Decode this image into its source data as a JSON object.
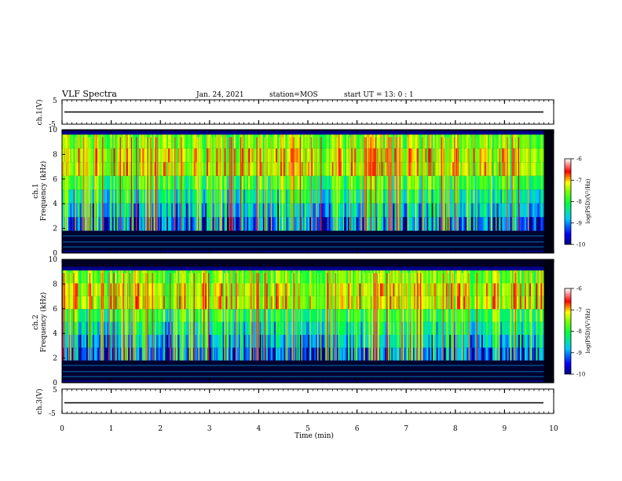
{
  "header": {
    "title": "VLF Spectra",
    "date": "Jan. 24, 2021",
    "station": "station=MOS",
    "start": "start UT =  13: 0  : 1"
  },
  "chart_data": [
    {
      "type": "line",
      "panel": "ch1-voltage",
      "ylabel": "ch.1(V)",
      "ylim": [
        -5,
        5
      ],
      "yticks": [
        "5",
        "-5"
      ],
      "series": [
        {
          "x": [
            0,
            9.8
          ],
          "y": [
            0,
            0
          ]
        }
      ]
    },
    {
      "type": "heatmap",
      "panel": "ch1-spectrogram",
      "ylabel_line1": "ch.1",
      "ylabel_line2": "Frequency (kHz)",
      "xlim": [
        0,
        10
      ],
      "ylim": [
        0,
        10
      ],
      "yticks": [
        "0",
        "2",
        "4",
        "6",
        "8",
        "10"
      ],
      "colorbar": {
        "label": "log(PSD)(V²/Hz)",
        "range": [
          -10,
          -6
        ],
        "ticks": [
          "-6",
          "-7",
          "-8",
          "-9",
          "-10"
        ]
      },
      "emission_band_khz": [
        6,
        9
      ]
    },
    {
      "type": "heatmap",
      "panel": "ch2-spectrogram",
      "ylabel_line1": "ch.2",
      "ylabel_line2": "Frequency (kHz)",
      "xlim": [
        0,
        10
      ],
      "ylim": [
        0,
        10
      ],
      "yticks": [
        "0",
        "2",
        "4",
        "6",
        "8",
        "10"
      ],
      "colorbar": {
        "label": "log(PSD)(V²/Hz)",
        "range": [
          -10,
          -6
        ],
        "ticks": [
          "-6",
          "-7",
          "-8",
          "-9",
          "-10"
        ]
      },
      "emission_band_khz": [
        6,
        8.5
      ]
    },
    {
      "type": "line",
      "panel": "ch3-voltage",
      "ylabel": "ch.3(V)",
      "ylim": [
        -5,
        5
      ],
      "yticks": [
        "5",
        "-5"
      ],
      "xlabel": "Time (min)",
      "xlim": [
        0,
        10
      ],
      "xticks": [
        "0",
        "1",
        "2",
        "3",
        "4",
        "5",
        "6",
        "7",
        "8",
        "9",
        "10"
      ],
      "series": [
        {
          "x": [
            0,
            9.8
          ],
          "y": [
            0,
            0
          ]
        }
      ]
    }
  ]
}
